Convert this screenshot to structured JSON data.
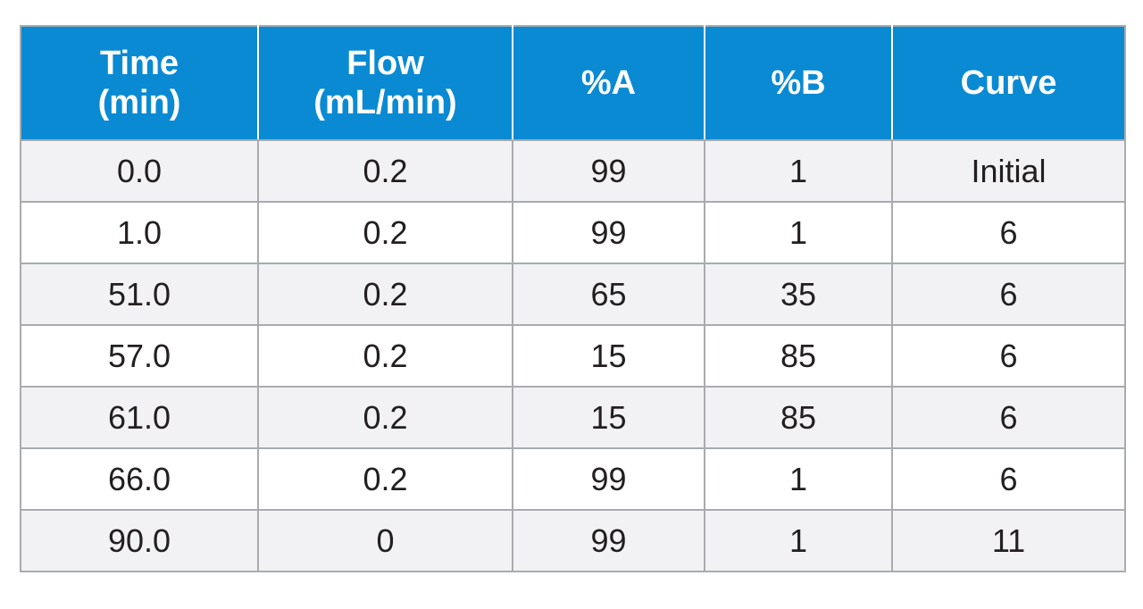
{
  "header": {
    "time": [
      "Time",
      "(min)"
    ],
    "flow": [
      "Flow",
      "(mL/min)"
    ],
    "pct_a": "%A",
    "pct_b": "%B",
    "curve": "Curve"
  },
  "rows": [
    {
      "time": "0.0",
      "flow": "0.2",
      "pct_a": "99",
      "pct_b": "1",
      "curve": "Initial"
    },
    {
      "time": "1.0",
      "flow": "0.2",
      "pct_a": "99",
      "pct_b": "1",
      "curve": "6"
    },
    {
      "time": "51.0",
      "flow": "0.2",
      "pct_a": "65",
      "pct_b": "35",
      "curve": "6"
    },
    {
      "time": "57.0",
      "flow": "0.2",
      "pct_a": "15",
      "pct_b": "85",
      "curve": "6"
    },
    {
      "time": "61.0",
      "flow": "0.2",
      "pct_a": "15",
      "pct_b": "85",
      "curve": "6"
    },
    {
      "time": "66.0",
      "flow": "0.2",
      "pct_a": "99",
      "pct_b": "1",
      "curve": "6"
    },
    {
      "time": "90.0",
      "flow": "0",
      "pct_a": "99",
      "pct_b": "1",
      "curve": "11"
    }
  ],
  "colors": {
    "header_bg": "#0a8ad3",
    "header_text": "#ffffff",
    "row_alt_bg": "#f2f2f4",
    "border": "#a9abae"
  }
}
